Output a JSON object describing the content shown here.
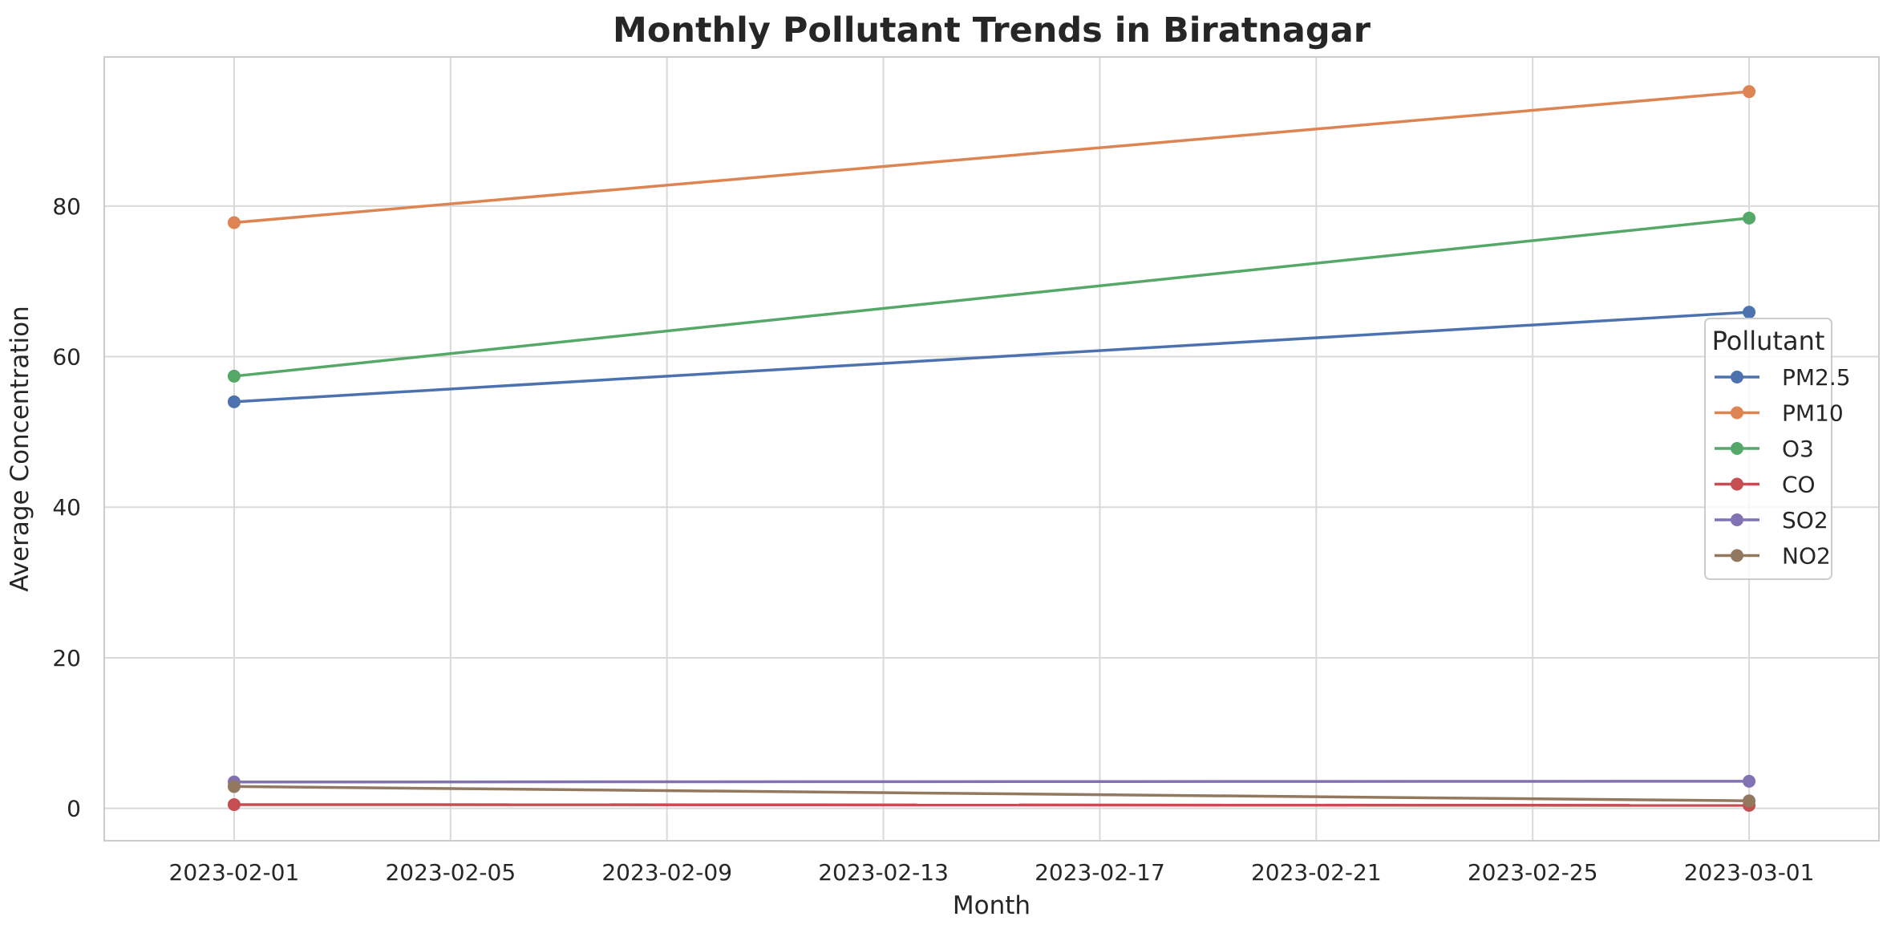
{
  "chart_data": {
    "type": "line",
    "title": "Monthly Pollutant Trends in Biratnagar",
    "xlabel": "Month",
    "ylabel": "Average Concentration",
    "x": [
      "2023-02-01",
      "2023-03-01"
    ],
    "x_ticks": [
      "2023-02-01",
      "2023-02-05",
      "2023-02-09",
      "2023-02-13",
      "2023-02-17",
      "2023-02-21",
      "2023-02-25",
      "2023-03-01"
    ],
    "y_ticks": [
      0,
      20,
      40,
      60,
      80
    ],
    "ylim": [
      -4.3,
      99.8
    ],
    "xlim": [
      "2023-01-29.6",
      "2023-03-03.4"
    ],
    "grid": true,
    "legend_title": "Pollutant",
    "legend_position": "right",
    "series": [
      {
        "name": "PM2.5",
        "values": [
          54.0,
          65.9
        ],
        "color": "#4c72b0"
      },
      {
        "name": "PM10",
        "values": [
          77.8,
          95.2
        ],
        "color": "#dd8452"
      },
      {
        "name": "O3",
        "values": [
          57.4,
          78.4
        ],
        "color": "#55a868"
      },
      {
        "name": "CO",
        "values": [
          0.5,
          0.4
        ],
        "color": "#c44e52"
      },
      {
        "name": "SO2",
        "values": [
          3.5,
          3.6
        ],
        "color": "#8172b3"
      },
      {
        "name": "NO2",
        "values": [
          2.9,
          1.0
        ],
        "color": "#937860"
      }
    ]
  }
}
